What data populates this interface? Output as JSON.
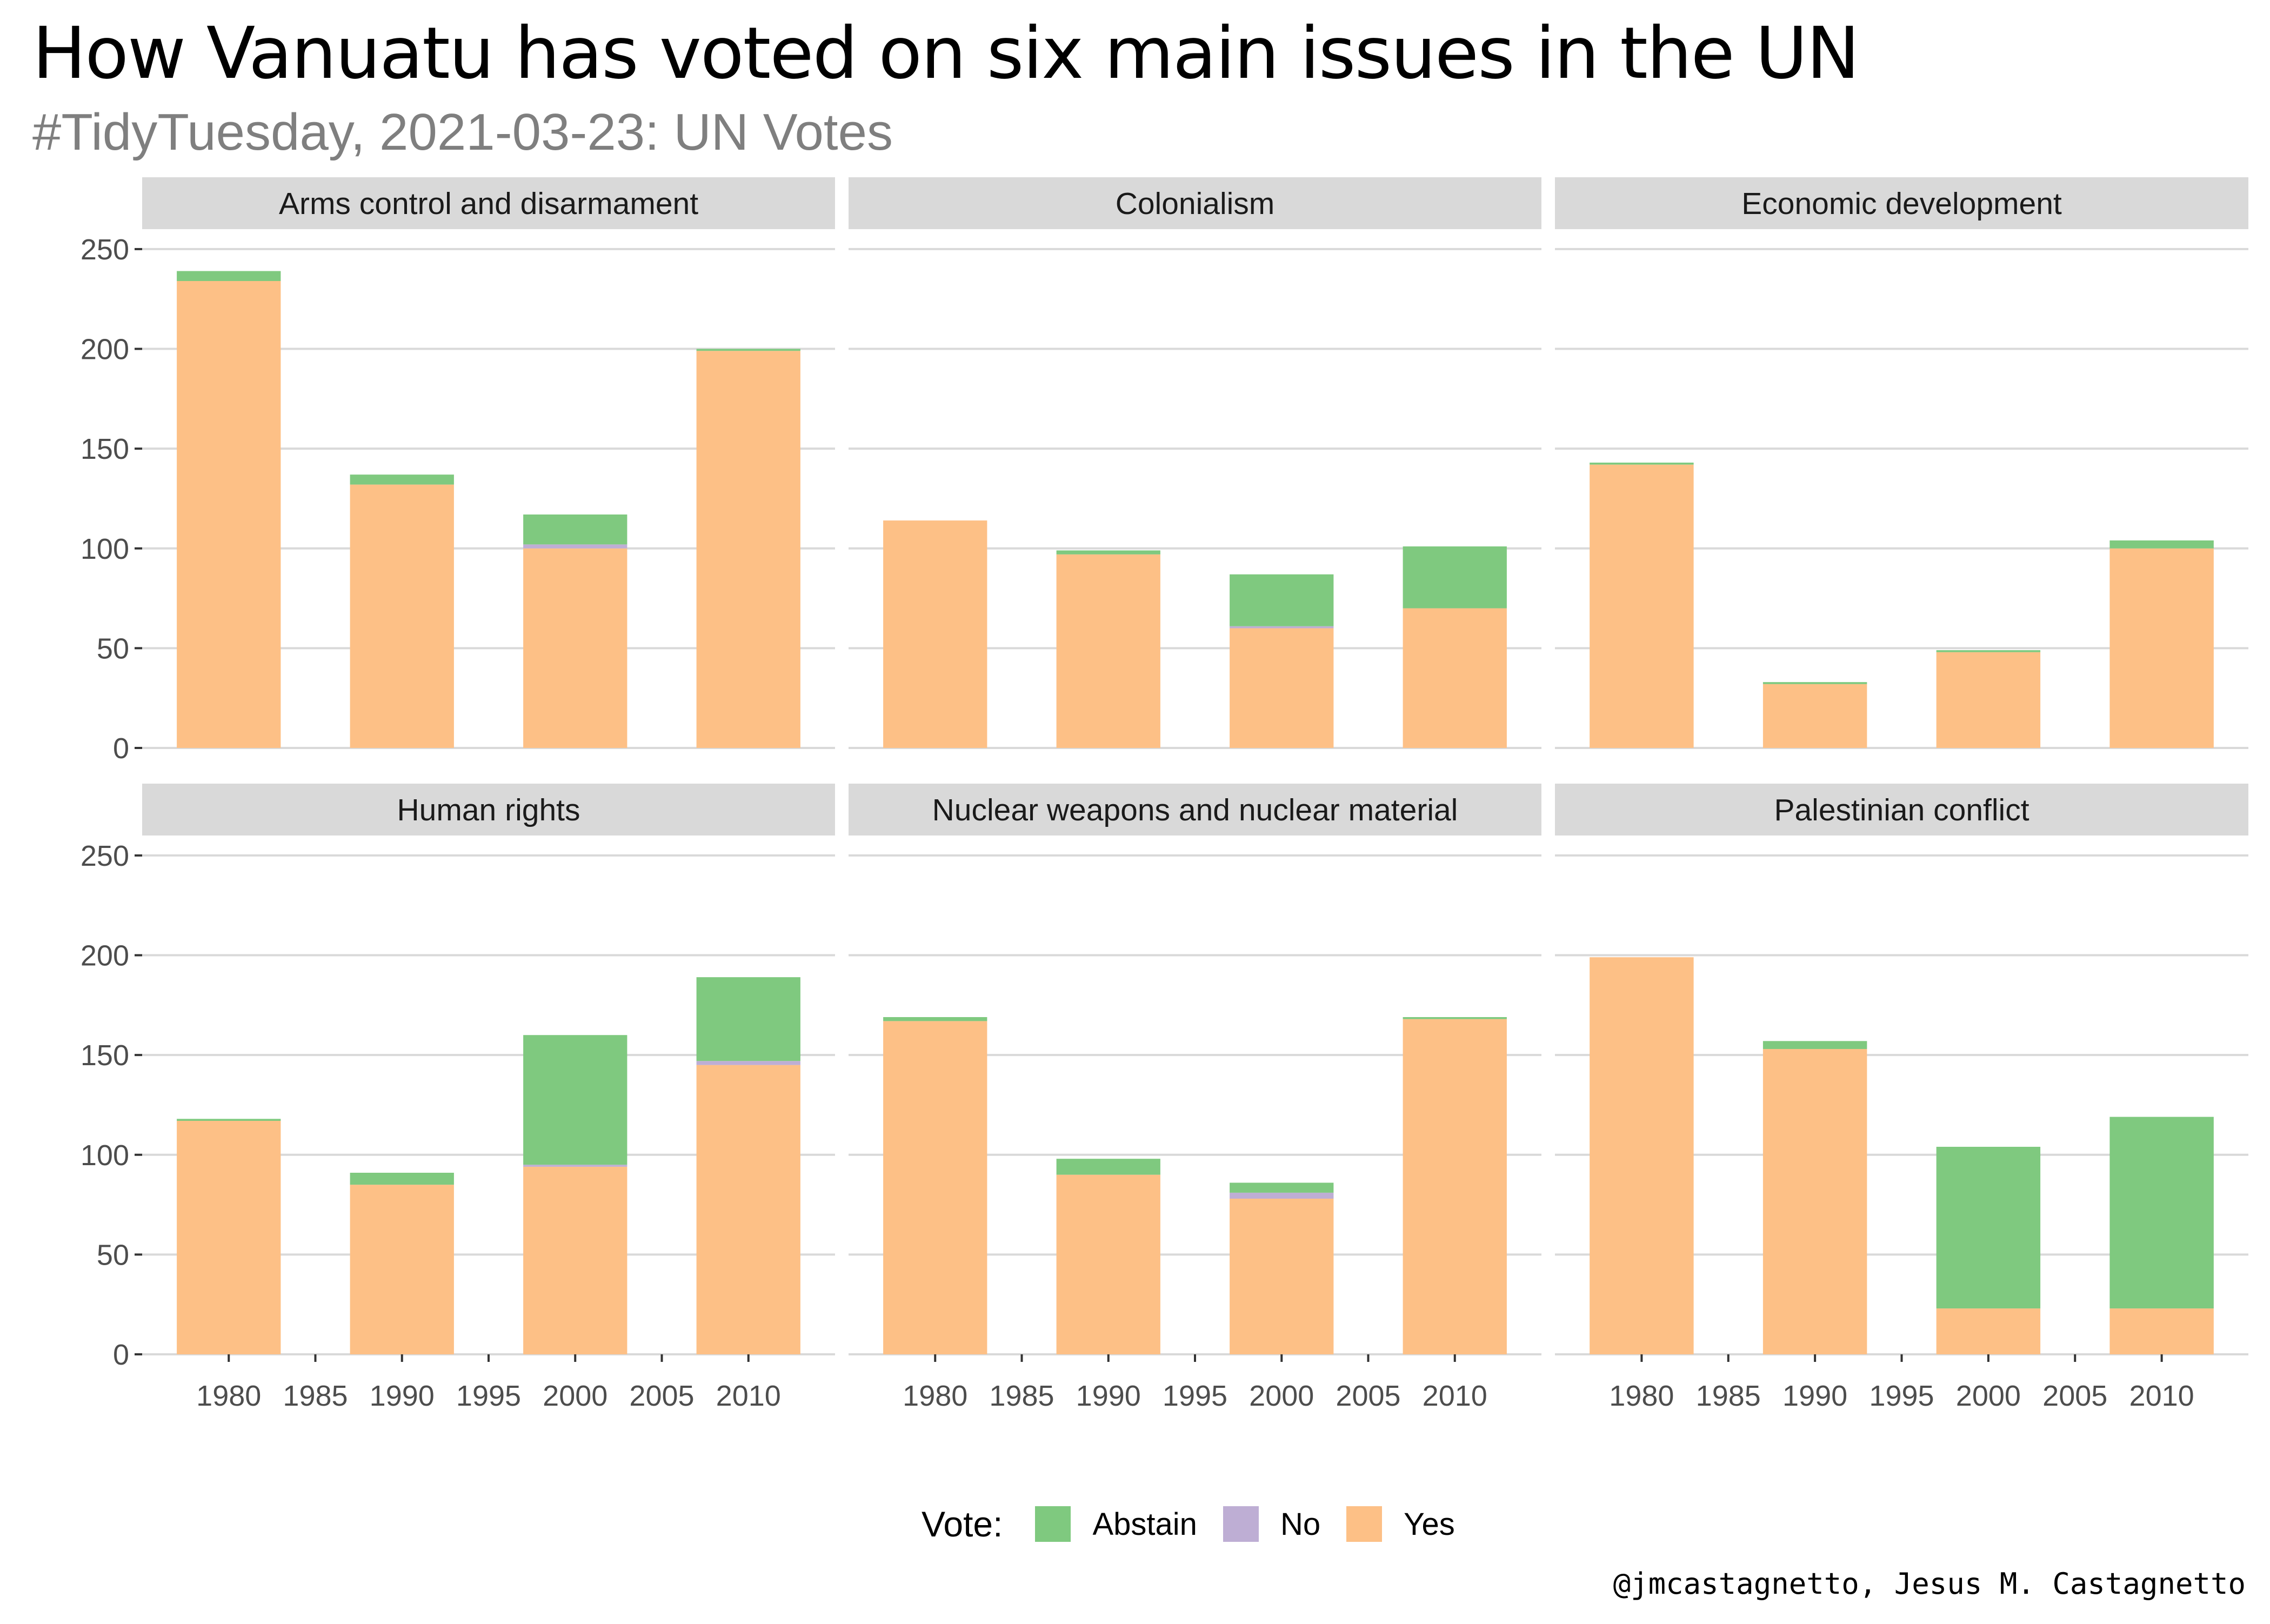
{
  "header": {
    "title": "How Vanuatu has voted on six main issues in the UN",
    "subtitle": "#TidyTuesday, 2021-03-23: UN Votes"
  },
  "caption": "@jmcastagnetto, Jesus M. Castagnetto",
  "legend": {
    "title": "Vote:",
    "items": [
      {
        "label": "Abstain",
        "color": "#7fc97f"
      },
      {
        "label": "No",
        "color": "#beaed4"
      },
      {
        "label": "Yes",
        "color": "#fdc086"
      }
    ]
  },
  "chart_data": {
    "type": "bar",
    "stacked": true,
    "layout": "facet-grid 2x3",
    "x_categories": [
      1980,
      1990,
      2000,
      2010
    ],
    "x_ticks": [
      "1980",
      "1985",
      "1990",
      "1995",
      "2000",
      "2005",
      "2010"
    ],
    "x_range": [
      1975,
      2015
    ],
    "ylim": [
      0,
      260
    ],
    "y_ticks": [
      "0",
      "50",
      "100",
      "150",
      "200",
      "250"
    ],
    "grid": true,
    "legend_position": "bottom",
    "colors": {
      "Yes": "#fdc086",
      "No": "#beaed4",
      "Abstain": "#7fc97f"
    },
    "series_order": [
      "Yes",
      "No",
      "Abstain"
    ],
    "facets": [
      {
        "name": "Arms control and disarmament",
        "yes": [
          234,
          132,
          100,
          199
        ],
        "no": [
          0,
          0,
          2,
          0
        ],
        "abstain": [
          5,
          5,
          15,
          1
        ]
      },
      {
        "name": "Colonialism",
        "yes": [
          114,
          97,
          60,
          70
        ],
        "no": [
          0,
          0,
          1,
          0
        ],
        "abstain": [
          0,
          2,
          26,
          31
        ]
      },
      {
        "name": "Economic development",
        "yes": [
          142,
          32,
          48,
          100
        ],
        "no": [
          0,
          0,
          0,
          0
        ],
        "abstain": [
          1,
          1,
          1,
          4
        ]
      },
      {
        "name": "Human rights",
        "yes": [
          117,
          85,
          94,
          145
        ],
        "no": [
          0,
          0,
          1,
          2
        ],
        "abstain": [
          1,
          6,
          65,
          42
        ]
      },
      {
        "name": "Nuclear weapons and nuclear material",
        "yes": [
          167,
          90,
          78,
          168
        ],
        "no": [
          0,
          0,
          3,
          0
        ],
        "abstain": [
          2,
          8,
          5,
          1
        ]
      },
      {
        "name": "Palestinian conflict",
        "yes": [
          199,
          153,
          23,
          23
        ],
        "no": [
          0,
          0,
          0,
          0
        ],
        "abstain": [
          0,
          4,
          81,
          96
        ]
      }
    ]
  }
}
